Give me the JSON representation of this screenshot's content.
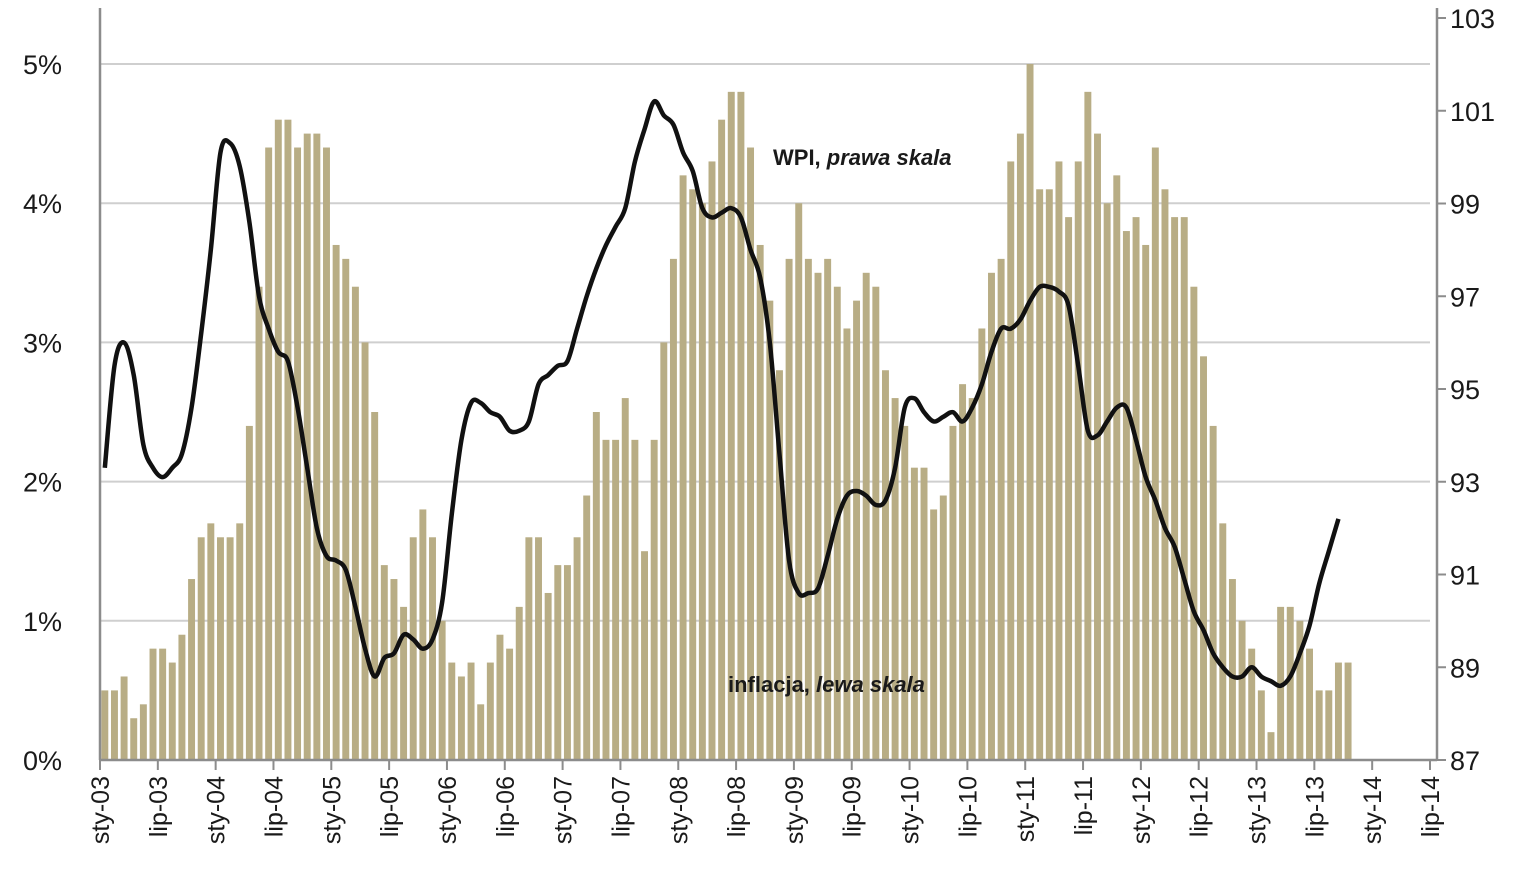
{
  "chart_data": {
    "type": "bar",
    "title": "",
    "x_tick_labels": [
      "sty-03",
      "lip-03",
      "sty-04",
      "lip-04",
      "sty-05",
      "lip-05",
      "sty-06",
      "lip-06",
      "sty-07",
      "lip-07",
      "sty-08",
      "lip-08",
      "sty-09",
      "lip-09",
      "sty-10",
      "lip-10",
      "sty-11",
      "lip-11",
      "sty-12",
      "lip-12",
      "sty-13",
      "lip-13",
      "sty-14",
      "lip-14"
    ],
    "x_start": "2003-01",
    "y_left": {
      "ylim": [
        0,
        5
      ],
      "ticks": [
        0,
        1,
        2,
        3,
        4,
        5
      ],
      "tick_labels": [
        "0%",
        "1%",
        "2%",
        "3%",
        "4%",
        "5%"
      ]
    },
    "y_right": {
      "ylim": [
        87,
        103
      ],
      "ticks": [
        87,
        89,
        91,
        93,
        95,
        97,
        99,
        101,
        103
      ],
      "tick_labels": [
        "87",
        "89",
        "91",
        "93",
        "95",
        "97",
        "99",
        "101",
        "103"
      ]
    },
    "grid": true,
    "series": [
      {
        "name": "inflacja, lewa skala",
        "kind": "bar",
        "axis": "left",
        "color": "#b8ad85",
        "values": [
          0.5,
          0.5,
          0.6,
          0.3,
          0.4,
          0.8,
          0.8,
          0.7,
          0.9,
          1.3,
          1.6,
          1.7,
          1.6,
          1.6,
          1.7,
          2.4,
          3.4,
          4.4,
          4.6,
          4.6,
          4.4,
          4.5,
          4.5,
          4.4,
          3.7,
          3.6,
          3.4,
          3.0,
          2.5,
          1.4,
          1.3,
          1.1,
          1.6,
          1.8,
          1.6,
          1.0,
          0.7,
          0.6,
          0.7,
          0.4,
          0.7,
          0.9,
          0.8,
          1.1,
          1.6,
          1.6,
          1.2,
          1.4,
          1.4,
          1.6,
          1.9,
          2.5,
          2.3,
          2.3,
          2.6,
          2.3,
          1.5,
          2.3,
          3.0,
          3.6,
          4.2,
          4.1,
          4.0,
          4.3,
          4.6,
          4.8,
          4.8,
          4.4,
          3.7,
          3.3,
          2.8,
          3.6,
          4.0,
          3.6,
          3.5,
          3.6,
          3.4,
          3.1,
          3.3,
          3.5,
          3.4,
          2.8,
          2.6,
          2.4,
          2.1,
          2.1,
          1.8,
          1.9,
          2.4,
          2.7,
          2.6,
          3.1,
          3.5,
          3.6,
          4.3,
          4.5,
          5.0,
          4.1,
          4.1,
          4.3,
          3.9,
          4.3,
          4.8,
          4.5,
          4.0,
          4.2,
          3.8,
          3.9,
          3.7,
          4.4,
          4.1,
          3.9,
          3.9,
          3.4,
          2.9,
          2.4,
          1.7,
          1.3,
          1.0,
          0.8,
          0.5,
          0.2,
          1.1,
          1.1,
          1.0,
          0.8,
          0.5,
          0.5,
          0.7,
          0.7
        ]
      },
      {
        "name": "WPI, prawa skala",
        "kind": "line",
        "axis": "right",
        "color": "#111111",
        "values": [
          93.3,
          95.5,
          96.0,
          95.3,
          93.8,
          93.3,
          93.1,
          93.3,
          93.6,
          94.6,
          96.2,
          98.0,
          100.1,
          100.3,
          99.8,
          98.6,
          97.0,
          96.3,
          95.8,
          95.6,
          94.6,
          93.3,
          92.0,
          91.4,
          91.3,
          91.1,
          90.3,
          89.4,
          88.8,
          89.2,
          89.3,
          89.7,
          89.6,
          89.4,
          89.6,
          90.4,
          92.3,
          93.9,
          94.7,
          94.7,
          94.5,
          94.4,
          94.1,
          94.1,
          94.3,
          95.1,
          95.3,
          95.5,
          95.6,
          96.3,
          97.0,
          97.6,
          98.1,
          98.5,
          98.9,
          99.9,
          100.6,
          101.2,
          100.9,
          100.7,
          100.1,
          99.7,
          98.9,
          98.7,
          98.8,
          98.9,
          98.7,
          98.0,
          97.4,
          96.0,
          93.6,
          91.3,
          90.6,
          90.6,
          90.7,
          91.4,
          92.2,
          92.7,
          92.8,
          92.7,
          92.5,
          92.6,
          93.3,
          94.6,
          94.8,
          94.5,
          94.3,
          94.4,
          94.5,
          94.3,
          94.6,
          95.1,
          95.8,
          96.3,
          96.3,
          96.5,
          96.9,
          97.2,
          97.2,
          97.1,
          96.8,
          95.5,
          94.1,
          94.0,
          94.3,
          94.6,
          94.6,
          93.9,
          93.1,
          92.6,
          92.0,
          91.6,
          90.9,
          90.2,
          89.8,
          89.3,
          89.0,
          88.8,
          88.8,
          89.0,
          88.8,
          88.7,
          88.6,
          88.8,
          89.3,
          89.9,
          90.8,
          91.5,
          92.2
        ]
      }
    ],
    "annotations": [
      {
        "bold": "WPI, ",
        "italic": "prawa skala"
      },
      {
        "bold": "inflacja, ",
        "italic": "lewa skala"
      }
    ]
  }
}
